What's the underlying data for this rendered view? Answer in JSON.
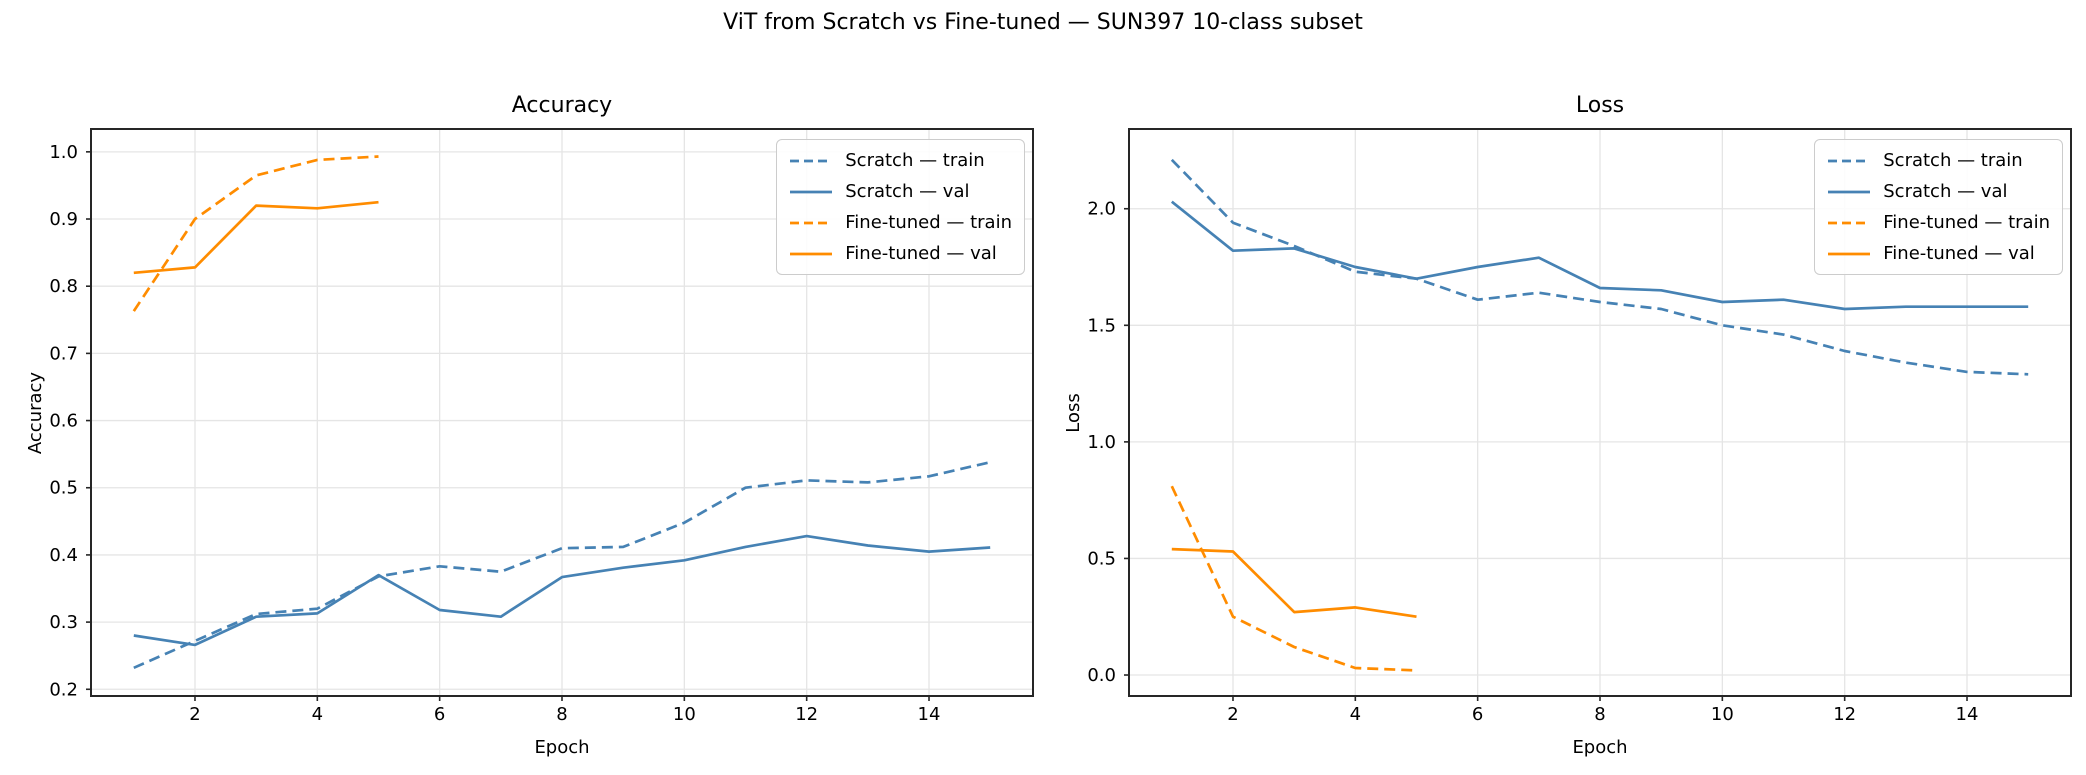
{
  "figure": {
    "title": "ViT from Scratch vs Fine-tuned — SUN397 10-class subset",
    "background": "#ffffff"
  },
  "palette": {
    "scratch_blue": "#4682b4",
    "finetuned_orange": "#ff8c00",
    "gridline": "#e5e5e5",
    "axis": "#262626"
  },
  "chart_data": [
    {
      "type": "line",
      "title": "Accuracy",
      "xlabel": "Epoch",
      "ylabel": "Accuracy",
      "x": [
        1,
        2,
        3,
        4,
        5,
        6,
        7,
        8,
        9,
        10,
        11,
        12,
        13,
        14,
        15
      ],
      "xlim": [
        0.3,
        15.7
      ],
      "ylim": [
        0.19,
        1.034
      ],
      "xticks": [
        2,
        4,
        6,
        8,
        10,
        12,
        14
      ],
      "yticks": [
        0.2,
        0.3,
        0.4,
        0.5,
        0.6,
        0.7,
        0.8,
        0.9,
        1.0
      ],
      "xtick_decimals": 0,
      "ytick_decimals": 1,
      "grid": true,
      "legend_position": "upper-right",
      "series": [
        {
          "name": "Scratch — train",
          "color": "#4682b4",
          "style": "dashed",
          "values": [
            0.232,
            0.272,
            0.312,
            0.32,
            0.368,
            0.383,
            0.375,
            0.41,
            0.412,
            0.448,
            0.5,
            0.511,
            0.508,
            0.517,
            0.538
          ]
        },
        {
          "name": "Scratch — val",
          "color": "#4682b4",
          "style": "solid",
          "values": [
            0.28,
            0.266,
            0.308,
            0.313,
            0.37,
            0.318,
            0.308,
            0.367,
            0.381,
            0.392,
            0.412,
            0.428,
            0.414,
            0.405,
            0.411
          ]
        },
        {
          "name": "Fine-tuned — train",
          "color": "#ff8c00",
          "style": "dashed",
          "values": [
            0.763,
            0.9,
            0.965,
            0.988,
            0.993
          ]
        },
        {
          "name": "Fine-tuned — val",
          "color": "#ff8c00",
          "style": "solid",
          "values": [
            0.82,
            0.828,
            0.92,
            0.916,
            0.925
          ]
        }
      ]
    },
    {
      "type": "line",
      "title": "Loss",
      "xlabel": "Epoch",
      "ylabel": "Loss",
      "x": [
        1,
        2,
        3,
        4,
        5,
        6,
        7,
        8,
        9,
        10,
        11,
        12,
        13,
        14,
        15
      ],
      "xlim": [
        0.3,
        15.7
      ],
      "ylim": [
        -0.09,
        2.342
      ],
      "xticks": [
        2,
        4,
        6,
        8,
        10,
        12,
        14
      ],
      "yticks": [
        0.0,
        0.5,
        1.0,
        1.5,
        2.0
      ],
      "xtick_decimals": 0,
      "ytick_decimals": 1,
      "grid": true,
      "legend_position": "upper-right",
      "series": [
        {
          "name": "Scratch — train",
          "color": "#4682b4",
          "style": "dashed",
          "values": [
            2.21,
            1.94,
            1.84,
            1.73,
            1.7,
            1.61,
            1.64,
            1.6,
            1.57,
            1.5,
            1.46,
            1.39,
            1.34,
            1.3,
            1.29
          ]
        },
        {
          "name": "Scratch — val",
          "color": "#4682b4",
          "style": "solid",
          "values": [
            2.03,
            1.82,
            1.83,
            1.75,
            1.7,
            1.75,
            1.79,
            1.66,
            1.65,
            1.6,
            1.61,
            1.57,
            1.58,
            1.58,
            1.58
          ]
        },
        {
          "name": "Fine-tuned — train",
          "color": "#ff8c00",
          "style": "dashed",
          "values": [
            0.81,
            0.25,
            0.12,
            0.03,
            0.02
          ]
        },
        {
          "name": "Fine-tuned — val",
          "color": "#ff8c00",
          "style": "solid",
          "values": [
            0.54,
            0.53,
            0.27,
            0.29,
            0.25
          ]
        }
      ]
    }
  ]
}
